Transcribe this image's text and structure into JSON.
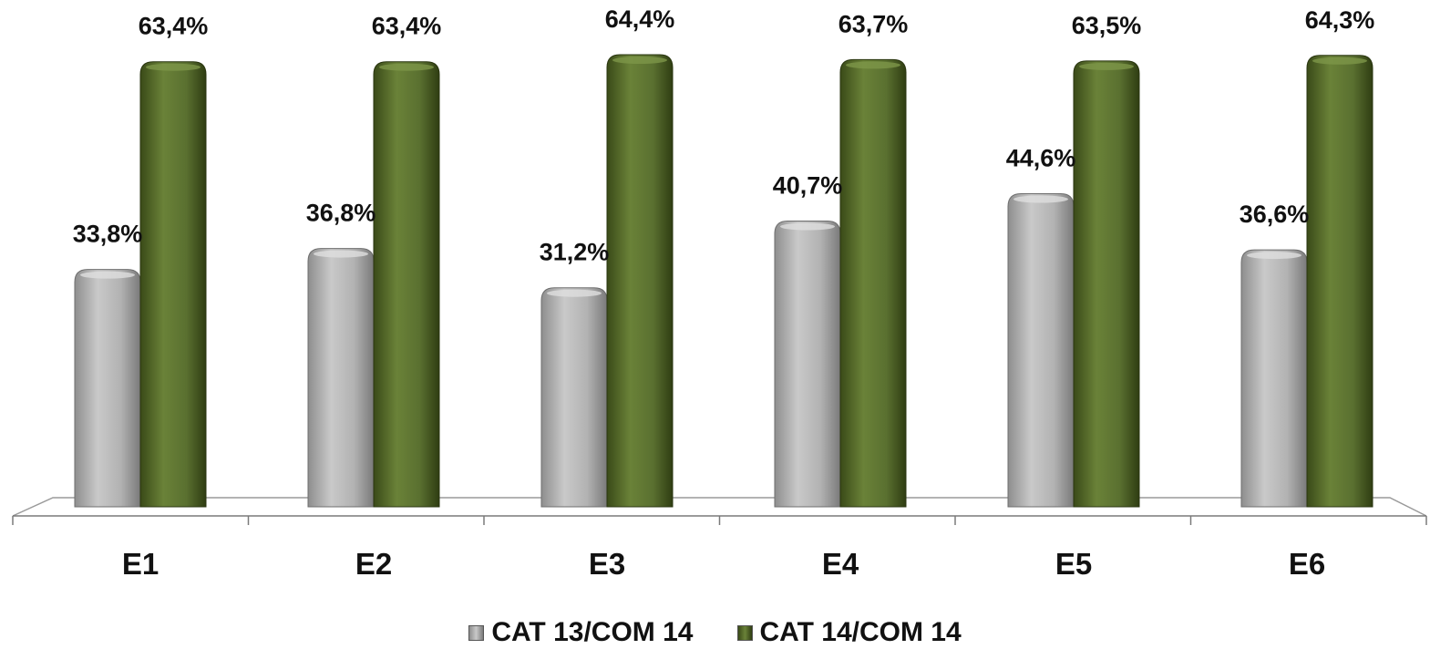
{
  "chart_data": {
    "type": "bar",
    "title": "",
    "xlabel": "",
    "ylabel": "",
    "categories": [
      "E1",
      "E2",
      "E3",
      "E4",
      "E5",
      "E6"
    ],
    "ylim": [
      0,
      64.4
    ],
    "grid": false,
    "legend_position": "bottom",
    "series": [
      {
        "name": "CAT 13/COM 14",
        "color": "#a8a8a8",
        "values": [
          33.8,
          36.8,
          31.2,
          40.7,
          44.6,
          36.6
        ],
        "labels": [
          "33,8%",
          "36,8%",
          "31,2%",
          "40,7%",
          "44,6%",
          "36,6%"
        ]
      },
      {
        "name": "CAT 14/COM 14",
        "color": "#5a7030",
        "values": [
          63.4,
          63.4,
          64.4,
          63.7,
          63.5,
          64.3
        ],
        "labels": [
          "63,4%",
          "63,4%",
          "64,4%",
          "63,7%",
          "63,5%",
          "64,3%"
        ]
      }
    ]
  }
}
